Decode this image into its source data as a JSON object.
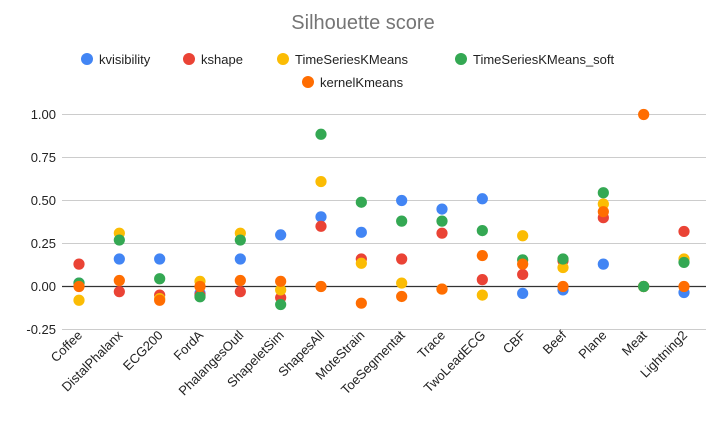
{
  "chart_data": {
    "type": "scatter",
    "title": "Silhouette score",
    "xlabel": "",
    "ylabel": "",
    "ylim": [
      -0.25,
      1.0
    ],
    "yticks": [
      1.0,
      0.75,
      0.5,
      0.25,
      0.0,
      -0.25
    ],
    "ytick_labels": [
      "1.00",
      "0.75",
      "0.50",
      "0.25",
      "0.00",
      "-0.25"
    ],
    "grid": true,
    "legend_position": "top",
    "categories": [
      "Coffee",
      "DistalPhalanx",
      "ECG200",
      "FordA",
      "PhalangesOutl",
      "ShapeletSim",
      "ShapesAll",
      "MoteStrain",
      "ToeSegmentat",
      "Trace",
      "TwoLeadECG",
      "CBF",
      "Beef",
      "Plane",
      "Meat",
      "Lightning2"
    ],
    "series": [
      {
        "name": "kvisibility",
        "color": "#4285F4",
        "values": [
          0.02,
          0.16,
          0.16,
          -0.04,
          0.16,
          0.3,
          0.405,
          0.315,
          0.5,
          0.45,
          0.51,
          -0.04,
          -0.02,
          0.13,
          0.0,
          -0.035
        ]
      },
      {
        "name": "kshape",
        "color": "#EA4335",
        "values": [
          0.13,
          -0.03,
          -0.05,
          -0.05,
          -0.03,
          -0.065,
          0.35,
          0.16,
          0.16,
          0.31,
          0.04,
          0.07,
          0.15,
          0.4,
          0.0,
          0.32
        ]
      },
      {
        "name": "TimeSeriesKMeans",
        "color": "#FBBC04",
        "values": [
          -0.08,
          0.31,
          -0.07,
          0.03,
          0.31,
          -0.02,
          0.61,
          0.135,
          0.02,
          -0.015,
          -0.05,
          0.295,
          0.11,
          0.48,
          0.0,
          0.16
        ]
      },
      {
        "name": "TimeSeriesKMeans_soft",
        "color": "#34A853",
        "values": [
          0.02,
          0.27,
          0.045,
          -0.06,
          0.27,
          -0.105,
          0.885,
          0.49,
          0.38,
          0.38,
          0.325,
          0.155,
          0.16,
          0.545,
          0.0,
          0.14
        ]
      },
      {
        "name": "kernelKmeans",
        "color": "#FF6D01",
        "values": [
          0.0,
          0.035,
          -0.08,
          0.0,
          0.035,
          0.03,
          0.0,
          -0.097,
          -0.058,
          -0.015,
          0.18,
          0.13,
          0.0,
          0.435,
          1.0,
          0.0
        ]
      }
    ]
  }
}
